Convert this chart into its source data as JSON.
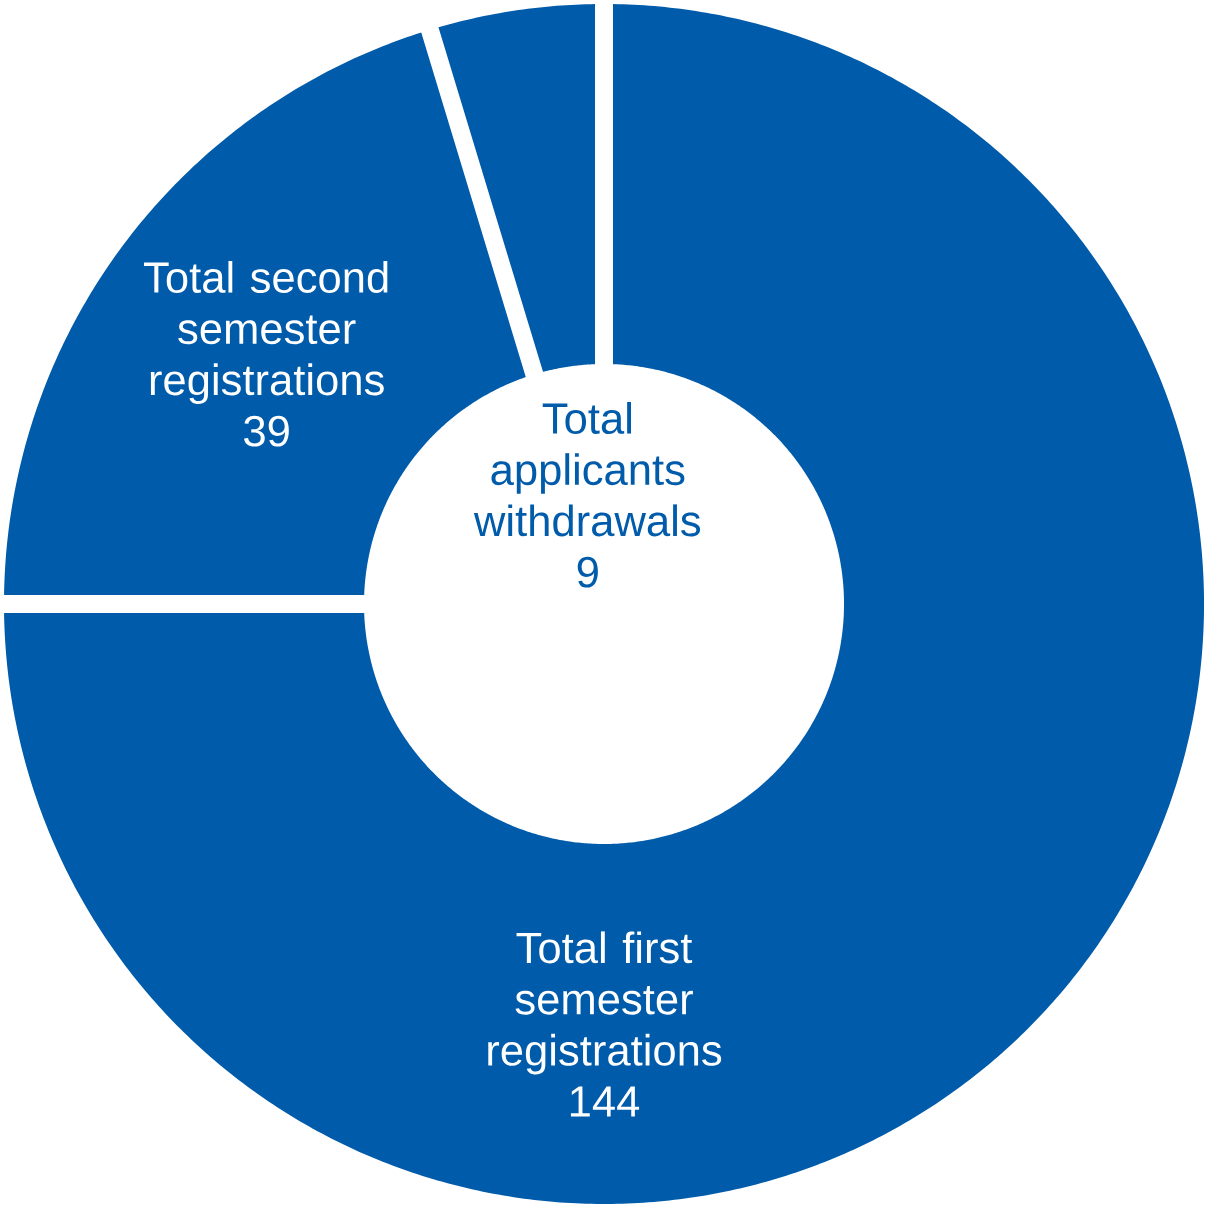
{
  "chart_data": {
    "type": "donut",
    "categories": [
      "Total second semester registrations",
      "Total applicants withdrawals",
      "Total first semester registrations"
    ],
    "values": [
      39,
      9,
      144
    ],
    "colors": [
      "#005baa",
      "#005baa",
      "#005baa"
    ],
    "data_labels": true
  }
}
